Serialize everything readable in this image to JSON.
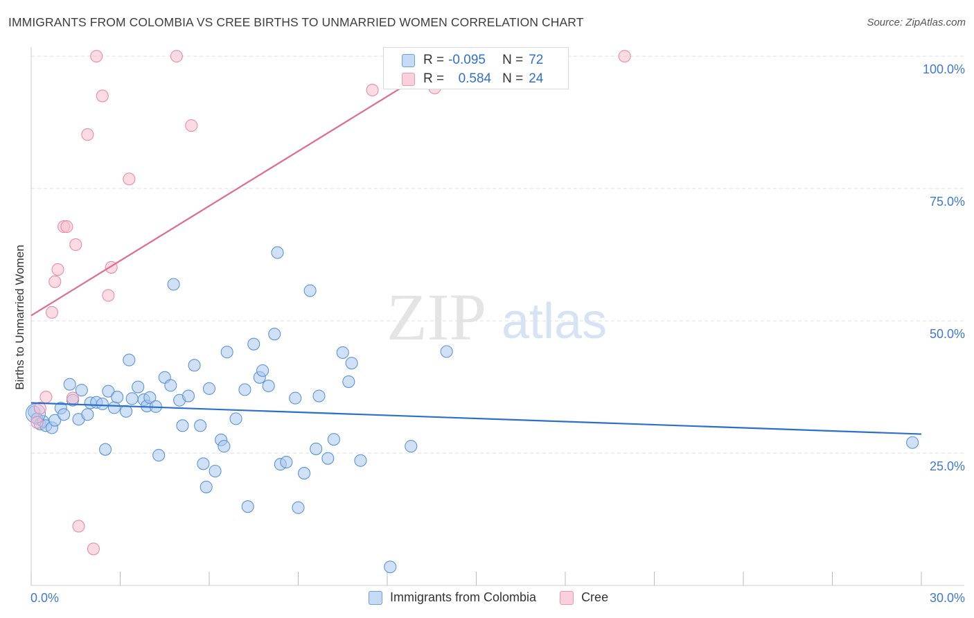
{
  "header": {
    "title": "IMMIGRANTS FROM COLOMBIA VS CREE BIRTHS TO UNMARRIED WOMEN CORRELATION CHART",
    "source": "Source: ZipAtlas.com"
  },
  "watermark": {
    "part1": "ZIP",
    "part2": "atlas"
  },
  "legend": {
    "rows": [
      {
        "r_label": "R =",
        "r_value": "-0.095",
        "n_label": "N =",
        "n_value": "72"
      },
      {
        "r_label": "R =",
        "r_value": "0.584",
        "n_label": "N =",
        "n_value": "24"
      }
    ]
  },
  "colors": {
    "blue_fill": "#a9c8ef",
    "blue_stroke": "#5a93d8",
    "blue_line": "#2a6fcc",
    "pink_fill": "#f7c0cf",
    "pink_stroke": "#e98aa6",
    "pink_line": "#e06a90",
    "axis_label": "#3f78cf",
    "grid": "#dddddd"
  },
  "chart_data": {
    "type": "scatter",
    "title": "IMMIGRANTS FROM COLOMBIA VS CREE BIRTHS TO UNMARRIED WOMEN CORRELATION CHART",
    "xlabel": "",
    "ylabel": "Births to Unmarried Women",
    "xlim": [
      0,
      30
    ],
    "ylim": [
      0,
      100
    ],
    "x_tick_labels": [
      "0.0%",
      "30.0%"
    ],
    "y_tick_labels": [
      "25.0%",
      "50.0%",
      "75.0%",
      "100.0%"
    ],
    "y_ticks": [
      25,
      50,
      75,
      100
    ],
    "grid": true,
    "legend_position": "bottom",
    "series": [
      {
        "name": "Immigrants from Colombia",
        "color": "blue",
        "r": -0.095,
        "n": 72,
        "trend": {
          "x": [
            0,
            30
          ],
          "y": [
            34.5,
            28.6
          ]
        },
        "points": [
          [
            0.1,
            32.8
          ],
          [
            0.2,
            31.5
          ],
          [
            0.3,
            30.5
          ],
          [
            0.4,
            31.0
          ],
          [
            0.5,
            30.2
          ],
          [
            0.7,
            29.8
          ],
          [
            0.8,
            31.2
          ],
          [
            1.0,
            33.5
          ],
          [
            1.1,
            32.3
          ],
          [
            1.3,
            38.0
          ],
          [
            1.4,
            35.0
          ],
          [
            1.6,
            31.4
          ],
          [
            1.7,
            36.9
          ],
          [
            1.9,
            32.3
          ],
          [
            2.0,
            34.5
          ],
          [
            2.2,
            34.6
          ],
          [
            2.4,
            34.3
          ],
          [
            2.5,
            25.7
          ],
          [
            2.6,
            36.7
          ],
          [
            2.8,
            33.6
          ],
          [
            2.9,
            35.6
          ],
          [
            3.2,
            32.9
          ],
          [
            3.3,
            42.6
          ],
          [
            3.4,
            35.3
          ],
          [
            3.6,
            37.5
          ],
          [
            3.8,
            35.1
          ],
          [
            3.9,
            33.9
          ],
          [
            4.0,
            35.5
          ],
          [
            4.2,
            33.8
          ],
          [
            4.3,
            24.6
          ],
          [
            4.5,
            39.3
          ],
          [
            4.7,
            37.8
          ],
          [
            4.8,
            56.9
          ],
          [
            5.0,
            35.0
          ],
          [
            5.1,
            30.2
          ],
          [
            5.3,
            35.8
          ],
          [
            5.5,
            41.6
          ],
          [
            5.7,
            30.2
          ],
          [
            5.8,
            23.0
          ],
          [
            5.9,
            18.6
          ],
          [
            6.0,
            37.2
          ],
          [
            6.2,
            21.6
          ],
          [
            6.4,
            27.5
          ],
          [
            6.5,
            26.3
          ],
          [
            6.6,
            44.1
          ],
          [
            6.9,
            31.5
          ],
          [
            7.2,
            37.0
          ],
          [
            7.3,
            14.9
          ],
          [
            7.5,
            45.6
          ],
          [
            7.7,
            39.3
          ],
          [
            7.8,
            40.6
          ],
          [
            8.0,
            37.7
          ],
          [
            8.2,
            47.5
          ],
          [
            8.3,
            62.9
          ],
          [
            8.4,
            22.9
          ],
          [
            8.6,
            23.3
          ],
          [
            8.9,
            35.4
          ],
          [
            9.0,
            14.7
          ],
          [
            9.2,
            21.2
          ],
          [
            9.4,
            55.7
          ],
          [
            9.6,
            25.8
          ],
          [
            9.7,
            35.8
          ],
          [
            10.0,
            24.0
          ],
          [
            10.2,
            27.6
          ],
          [
            10.5,
            44.0
          ],
          [
            10.7,
            38.5
          ],
          [
            10.8,
            42.0
          ],
          [
            11.1,
            23.6
          ],
          [
            12.1,
            3.5
          ],
          [
            12.8,
            26.3
          ],
          [
            14.0,
            44.2
          ],
          [
            29.7,
            27.0
          ]
        ]
      },
      {
        "name": "Cree",
        "color": "pink",
        "r": 0.584,
        "n": 24,
        "trend": {
          "x": [
            0,
            14.2
          ],
          "y": [
            51.0,
            100.0
          ]
        },
        "points": [
          [
            0.2,
            30.8
          ],
          [
            0.3,
            33.5
          ],
          [
            0.5,
            35.6
          ],
          [
            0.7,
            51.6
          ],
          [
            0.8,
            57.4
          ],
          [
            0.9,
            59.7
          ],
          [
            1.1,
            67.8
          ],
          [
            1.2,
            67.8
          ],
          [
            1.4,
            35.4
          ],
          [
            1.5,
            64.4
          ],
          [
            1.6,
            11.2
          ],
          [
            1.9,
            85.2
          ],
          [
            2.1,
            6.9
          ],
          [
            2.2,
            100.0
          ],
          [
            2.4,
            92.5
          ],
          [
            2.6,
            54.8
          ],
          [
            2.7,
            60.1
          ],
          [
            3.3,
            76.8
          ],
          [
            4.9,
            100.0
          ],
          [
            5.4,
            86.9
          ],
          [
            11.5,
            93.6
          ],
          [
            13.5,
            100.0
          ],
          [
            13.6,
            94.0
          ],
          [
            20.0,
            100.0
          ]
        ]
      }
    ]
  },
  "bottom_legend": {
    "items": [
      {
        "label": "Immigrants from Colombia"
      },
      {
        "label": "Cree"
      }
    ]
  }
}
